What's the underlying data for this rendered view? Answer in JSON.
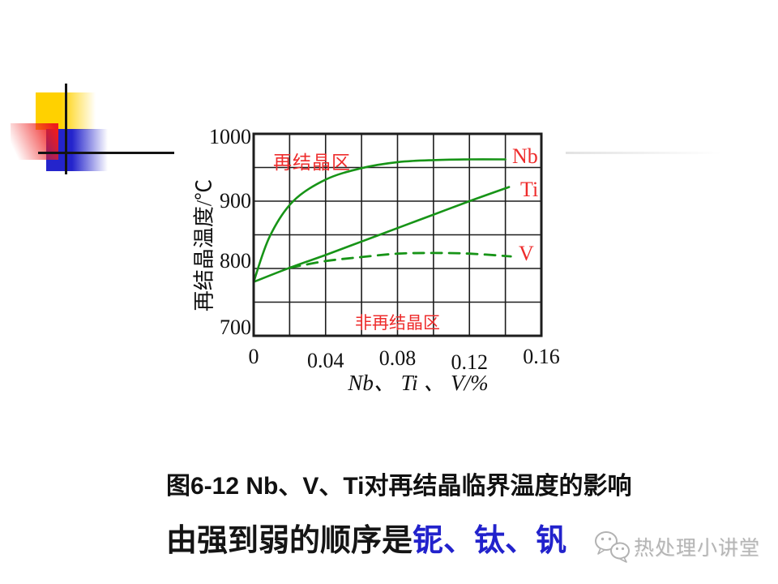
{
  "figure": {
    "caption": "图6-12  Nb、V、Ti对再结晶临界温度的影响"
  },
  "conclusion": {
    "prefix": "由强到弱的顺序是",
    "emphasis": "铌、钛、钒"
  },
  "watermark": {
    "icon": "wechat-logo",
    "text": "热处理小讲堂"
  },
  "colors": {
    "curve_green": "#179417",
    "label_red": "#ee2c2c",
    "emphasis_blue": "#2222cc",
    "grid_black": "#1d1d1d",
    "deco_yellow": "#ffd100",
    "deco_blue": "#2424cc",
    "deco_red": "#ee1c1c",
    "watermark_gray": "#b5b5b5"
  },
  "chart_data": {
    "type": "line",
    "title": "",
    "xlabel": "Nb、 Ti 、 V/%",
    "ylabel": "再结晶温度/℃",
    "xlim": [
      0,
      0.16
    ],
    "ylim": [
      700,
      1000
    ],
    "grid": "on",
    "grid_step_x": 0.02,
    "grid_step_y": 50,
    "x_ticks": [
      "0",
      "0.04",
      "0.08",
      "0.12",
      "0.16"
    ],
    "y_ticks": [
      "1000",
      "900",
      "800",
      "700"
    ],
    "annotations": [
      {
        "text": "再结晶区",
        "x": 0.012,
        "y": 968,
        "color": "#ee2c2c"
      },
      {
        "text": "非再结晶区",
        "x": 0.057,
        "y": 727,
        "color": "#ee2c2c"
      }
    ],
    "series": [
      {
        "name": "Nb",
        "line_style": "solid",
        "color": "#179417",
        "label_color": "#ee2c2c",
        "x": [
          0,
          0.009,
          0.022,
          0.04,
          0.06,
          0.08,
          0.1,
          0.12,
          0.14
        ],
        "y": [
          780,
          848,
          900,
          932,
          949,
          958,
          961,
          962,
          962
        ]
      },
      {
        "name": "Ti",
        "line_style": "solid",
        "color": "#179417",
        "label_color": "#ee2c2c",
        "x": [
          0,
          0.02,
          0.04,
          0.06,
          0.08,
          0.1,
          0.12,
          0.142
        ],
        "y": [
          780,
          801,
          820,
          840,
          860,
          880,
          900,
          921
        ]
      },
      {
        "name": "V",
        "line_style": "dashed",
        "color": "#179417",
        "label_color": "#ee2c2c",
        "x": [
          0.02,
          0.04,
          0.06,
          0.08,
          0.1,
          0.12,
          0.143
        ],
        "y": [
          801,
          811,
          817,
          822,
          823,
          822,
          818
        ]
      }
    ]
  }
}
